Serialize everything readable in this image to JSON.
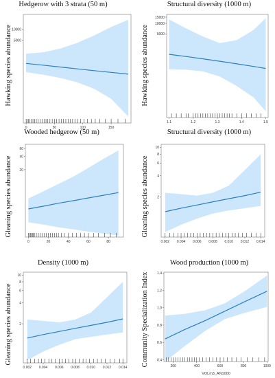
{
  "chart_data": [
    {
      "type": "line",
      "title": "Hedgerow with 3 strata (50 m)",
      "ylabel": "Hawking species abundance",
      "xlabel": "",
      "xlim": [
        -5,
        185
      ],
      "x_ticks": [
        "0",
        "50",
        "100",
        "150"
      ],
      "x_tick_values": [
        0,
        50,
        100,
        150
      ],
      "y_scale": "log",
      "ylim": [
        30,
        25000
      ],
      "y_ticks": [
        "10000",
        "5000"
      ],
      "y_tick_values": [
        10000,
        5000
      ],
      "series": [
        {
          "x": [
            0,
            30,
            60,
            90,
            120,
            150,
            180
          ],
          "y": [
            1200,
            1080,
            965,
            860,
            770,
            690,
            620
          ],
          "lower": [
            700,
            600,
            490,
            375,
            250,
            135,
            45
          ],
          "upper": [
            2200,
            2400,
            3000,
            4300,
            6800,
            11500,
            18000
          ]
        }
      ],
      "rug": [
        0,
        2,
        4,
        6,
        9,
        12,
        15,
        18,
        21,
        25,
        28,
        32,
        35,
        38,
        42,
        46,
        50,
        54,
        58,
        62,
        66,
        70,
        74,
        78,
        82,
        86,
        91,
        96,
        102,
        108,
        115,
        122,
        130,
        140,
        150,
        162,
        175
      ]
    },
    {
      "type": "line",
      "title": "Structural diversity (1000 m)",
      "ylabel": "Hawking species abundance",
      "xlabel": "",
      "xlim": [
        1.09,
        1.51
      ],
      "x_ticks": [
        "1.1",
        "1.2",
        "1.3",
        "1.4",
        "1.5"
      ],
      "x_tick_values": [
        1.1,
        1.2,
        1.3,
        1.4,
        1.5
      ],
      "y_scale": "log",
      "ylim": [
        20,
        18000
      ],
      "y_ticks": [
        "15000",
        "10000",
        "5000"
      ],
      "y_tick_values": [
        15000,
        10000,
        5000
      ],
      "series": [
        {
          "x": [
            1.1,
            1.17,
            1.24,
            1.31,
            1.38,
            1.45,
            1.5
          ],
          "y": [
            1300,
            1120,
            960,
            820,
            690,
            580,
            510
          ],
          "lower": [
            480,
            470,
            420,
            300,
            160,
            75,
            30
          ],
          "upper": [
            13000,
            7200,
            4200,
            2700,
            3300,
            6500,
            14000
          ]
        }
      ],
      "rug": [
        1.11,
        1.13,
        1.15,
        1.17,
        1.18,
        1.2,
        1.21,
        1.22,
        1.23,
        1.24,
        1.25,
        1.26,
        1.27,
        1.28,
        1.29,
        1.3,
        1.31,
        1.32,
        1.33,
        1.34,
        1.35,
        1.36,
        1.38,
        1.4,
        1.42,
        1.44,
        1.46,
        1.48
      ]
    },
    {
      "type": "line",
      "title": "Wooded hedgerow (50 m)",
      "ylabel": "Gleaning species abundance",
      "xlabel": "",
      "xlim": [
        -3,
        95
      ],
      "x_ticks": [
        "0",
        "20",
        "40",
        "60",
        "80"
      ],
      "x_tick_values": [
        0,
        20,
        40,
        60,
        80
      ],
      "y_scale": "log",
      "ylim": [
        0.6,
        75
      ],
      "y_ticks": [
        "60",
        "40",
        "20"
      ],
      "y_tick_values": [
        60,
        40,
        20
      ],
      "series": [
        {
          "x": [
            0,
            15,
            30,
            45,
            60,
            75,
            90
          ],
          "y": [
            2.6,
            3.0,
            3.5,
            4.0,
            4.6,
            5.3,
            6.1
          ],
          "lower": [
            1.3,
            1.15,
            1.0,
            0.9,
            0.8,
            0.72,
            0.65
          ],
          "upper": [
            4.5,
            6.5,
            9.5,
            14,
            22,
            35,
            55
          ]
        }
      ],
      "rug": [
        0,
        1,
        2,
        3,
        4,
        5,
        6,
        8,
        10,
        12,
        14,
        16,
        18,
        20,
        22,
        24,
        26,
        28,
        30,
        33,
        36,
        40,
        44,
        48,
        52,
        56,
        60,
        65,
        70,
        76,
        82,
        88
      ]
    },
    {
      "type": "line",
      "title": "Structural diversity (1000 m)",
      "ylabel": "Gleaning species abundance",
      "xlabel": "",
      "xlim": [
        0.0015,
        0.0145
      ],
      "x_ticks": [
        "0.002",
        "0.004",
        "0.006",
        "0.008",
        "0.010",
        "0.012",
        "0.014"
      ],
      "x_tick_values": [
        0.002,
        0.004,
        0.006,
        0.008,
        0.01,
        0.012,
        0.014
      ],
      "y_scale": "log",
      "ylim": [
        0.55,
        11
      ],
      "y_ticks": [
        "10",
        "8",
        "6",
        "4",
        "2"
      ],
      "y_tick_values": [
        10,
        8,
        6,
        4,
        2
      ],
      "series": [
        {
          "x": [
            0.002,
            0.004,
            0.006,
            0.008,
            0.01,
            0.012,
            0.014
          ],
          "y": [
            1.25,
            1.4,
            1.55,
            1.72,
            1.9,
            2.1,
            2.35
          ],
          "lower": [
            0.65,
            0.82,
            1.0,
            1.18,
            1.3,
            1.4,
            1.5
          ],
          "upper": [
            2.3,
            2.2,
            2.1,
            2.3,
            2.9,
            4.8,
            8.0
          ]
        }
      ],
      "rug": [
        0.002,
        0.0026,
        0.0031,
        0.0036,
        0.004,
        0.0044,
        0.0048,
        0.0052,
        0.0056,
        0.006,
        0.0064,
        0.0068,
        0.0072,
        0.0076,
        0.008,
        0.0084,
        0.0088,
        0.0092,
        0.0096,
        0.01,
        0.0104,
        0.0108,
        0.0112,
        0.0117,
        0.0122,
        0.0128,
        0.0134,
        0.014
      ]
    },
    {
      "type": "line",
      "title": "Density (1000 m)",
      "ylabel": "Gleaning species abundance",
      "xlabel": "",
      "xlim": [
        0.0015,
        0.0145
      ],
      "x_ticks": [
        "0.002",
        "0.004",
        "0.006",
        "0.008",
        "0.010",
        "0.012",
        "0.014"
      ],
      "x_tick_values": [
        0.002,
        0.004,
        0.006,
        0.008,
        0.01,
        0.012,
        0.014
      ],
      "y_scale": "log",
      "ylim": [
        0.55,
        11
      ],
      "y_ticks": [
        "10",
        "8",
        "6",
        "4",
        "2"
      ],
      "y_tick_values": [
        10,
        8,
        6,
        4,
        2
      ],
      "series": [
        {
          "x": [
            0.002,
            0.004,
            0.006,
            0.008,
            0.01,
            0.012,
            0.014
          ],
          "y": [
            1.25,
            1.4,
            1.55,
            1.72,
            1.9,
            2.1,
            2.35
          ],
          "lower": [
            0.6,
            0.8,
            1.0,
            1.2,
            1.3,
            1.4,
            1.5
          ],
          "upper": [
            2.3,
            2.2,
            2.1,
            2.3,
            2.9,
            4.8,
            8.0
          ]
        }
      ],
      "rug": [
        0.002,
        0.0024,
        0.0029,
        0.0034,
        0.0038,
        0.0042,
        0.0047,
        0.0051,
        0.0055,
        0.006,
        0.0064,
        0.0068,
        0.0072,
        0.0077,
        0.0081,
        0.0085,
        0.009,
        0.0094,
        0.0098,
        0.0103,
        0.0108,
        0.0113,
        0.0118,
        0.0124,
        0.013,
        0.0136,
        0.014
      ]
    },
    {
      "type": "line",
      "title": "Wood production (1000 m)",
      "ylabel": "Community Specialization Index",
      "xlabel": "VOLm3_AN1000",
      "xlim": [
        120,
        1010
      ],
      "x_ticks": [
        "200",
        "400",
        "600",
        "800",
        "1000"
      ],
      "x_tick_values": [
        200,
        400,
        600,
        800,
        1000
      ],
      "y_scale": "linear",
      "ylim": [
        0.38,
        1.41
      ],
      "y_ticks": [
        "1.4",
        "1.2",
        "1.0",
        "0.8",
        "0.6",
        "0.4"
      ],
      "y_tick_values": [
        1.4,
        1.2,
        1.0,
        0.8,
        0.6,
        0.4
      ],
      "series": [
        {
          "x": [
            130,
            300,
            470,
            640,
            810,
            1000
          ],
          "y": [
            0.64,
            0.75,
            0.85,
            0.96,
            1.07,
            1.19
          ],
          "lower": [
            0.37,
            0.56,
            0.73,
            0.87,
            0.94,
            1.01
          ],
          "upper": [
            0.91,
            0.93,
            0.97,
            1.05,
            1.19,
            1.37
          ]
        }
      ],
      "rug": [
        140,
        160,
        180,
        200,
        220,
        240,
        260,
        280,
        300,
        320,
        340,
        360,
        380,
        400,
        420,
        450,
        480,
        510,
        540,
        570,
        600,
        630,
        660,
        700,
        740,
        780,
        830,
        880,
        930,
        980
      ]
    }
  ]
}
